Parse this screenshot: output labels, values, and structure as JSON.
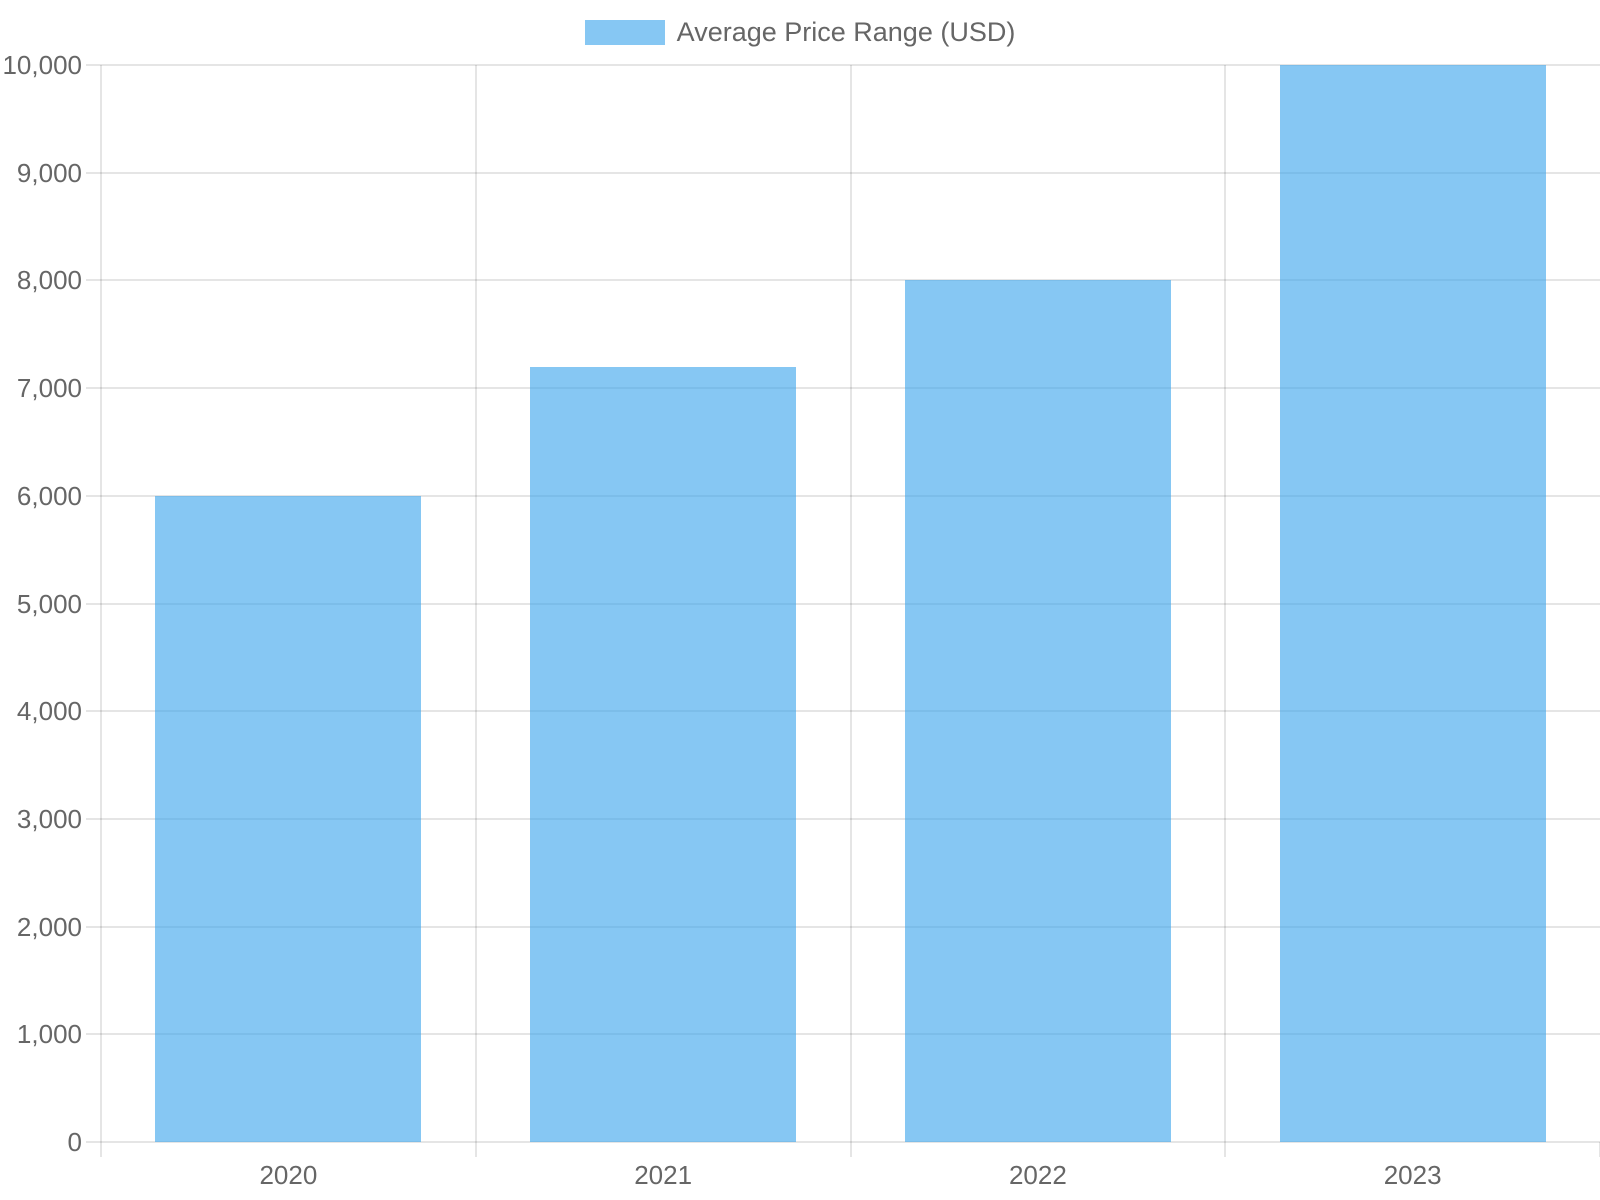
{
  "chart_data": {
    "type": "bar",
    "title": "",
    "categories": [
      "2020",
      "2021",
      "2022",
      "2023"
    ],
    "series": [
      {
        "name": "Average Price Range (USD)",
        "values": [
          6000,
          7200,
          8000,
          10000
        ]
      }
    ],
    "xlabel": "",
    "ylabel": "",
    "ylim": [
      0,
      10000
    ],
    "ytick_step": 1000,
    "ytick_labels": [
      "0",
      "1,000",
      "2,000",
      "3,000",
      "4,000",
      "5,000",
      "6,000",
      "7,000",
      "8,000",
      "9,000",
      "10,000"
    ],
    "grid": "on",
    "legend_position": "top-center"
  },
  "legend": {
    "label": "Average Price Range (USD)"
  },
  "colors": {
    "bar_fill": "rgba(54, 162, 235, 0.6)",
    "grid_line": "rgba(0, 0, 0, 0.1)",
    "axis_text": "#666666",
    "background": "#ffffff"
  }
}
